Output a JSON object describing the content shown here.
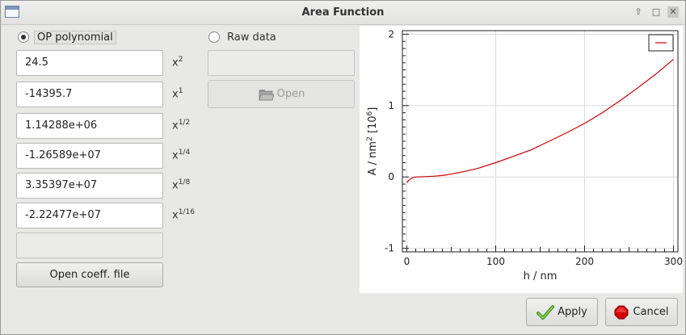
{
  "window": {
    "title": "Area Function"
  },
  "options": {
    "op_polynomial": {
      "label": "OP polynomial",
      "checked": true
    },
    "raw_data": {
      "label": "Raw data",
      "checked": false
    }
  },
  "coefficients": [
    {
      "value": "24.5",
      "base": "x",
      "exp": "2"
    },
    {
      "value": "-14395.7",
      "base": "x",
      "exp": "1"
    },
    {
      "value": "1.14288e+06",
      "base": "x",
      "exp": "1/2"
    },
    {
      "value": "-1.26589e+07",
      "base": "x",
      "exp": "1/4"
    },
    {
      "value": "3.35397e+07",
      "base": "x",
      "exp": "1/8"
    },
    {
      "value": "-2.22477e+07",
      "base": "x",
      "exp": "1/16"
    }
  ],
  "extra_field": {
    "value": ""
  },
  "raw_data_field": {
    "value": ""
  },
  "buttons": {
    "open_coeff": "Open coeff. file",
    "open": "Open",
    "apply": "Apply",
    "cancel": "Cancel"
  },
  "chart_data": {
    "type": "line",
    "xlabel": "h / nm",
    "ylabel_main": "A / nm",
    "ylabel_sup": "2",
    "ylabel_unit_open": " [10",
    "ylabel_unit_sup": "6",
    "ylabel_unit_close": "]",
    "xlim": [
      -5,
      305
    ],
    "ylim": [
      -1.05,
      2.05
    ],
    "x_ticks": [
      "0",
      "100",
      "200",
      "300"
    ],
    "x_tick_values": [
      0,
      100,
      200,
      300
    ],
    "y_ticks": [
      "2",
      "1",
      "0",
      "-1"
    ],
    "y_tick_values": [
      2,
      1,
      0,
      -1
    ],
    "grid": true,
    "legend": {
      "position": "top-right",
      "color": "#cc0000",
      "label": ""
    },
    "series": [
      {
        "color": "#cc0000",
        "x": [
          0,
          2,
          5,
          8,
          12,
          20,
          30,
          40,
          50,
          60,
          70,
          80,
          100,
          120,
          140,
          160,
          180,
          200,
          220,
          240,
          260,
          280,
          300
        ],
        "y": [
          -0.08,
          -0.05,
          -0.02,
          -0.005,
          0.0,
          0.005,
          0.01,
          0.02,
          0.04,
          0.065,
          0.09,
          0.12,
          0.2,
          0.29,
          0.38,
          0.5,
          0.62,
          0.75,
          0.9,
          1.07,
          1.25,
          1.44,
          1.65
        ]
      }
    ]
  }
}
